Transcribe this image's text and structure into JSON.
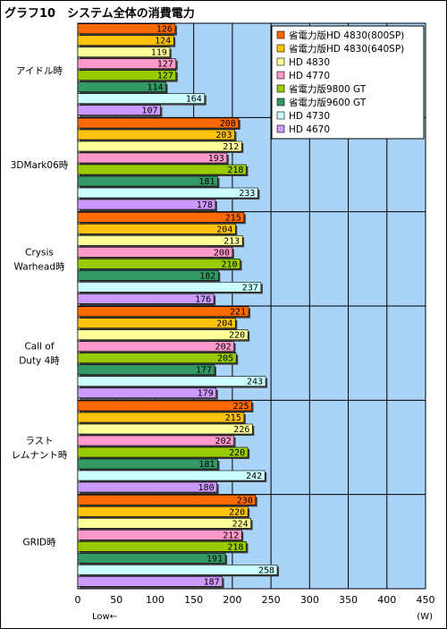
{
  "title": "グラフ10　システム全体の消費電力",
  "colors": {
    "plot_bg": "#a9d3f7",
    "grid": "#000000",
    "series": [
      "#ff6a00",
      "#ffc20a",
      "#ffff99",
      "#ff99cc",
      "#99cc00",
      "#339966",
      "#ccffff",
      "#cc99ff"
    ]
  },
  "chart_data": {
    "type": "bar",
    "orientation": "horizontal",
    "title": "グラフ10　システム全体の消費電力",
    "xlabel": "Low←",
    "unit": "(W)",
    "xlim": [
      0,
      450
    ],
    "x_ticks": [
      0,
      50,
      100,
      150,
      200,
      250,
      300,
      350,
      400,
      450
    ],
    "grid": true,
    "legend_position": "top-right",
    "categories": [
      "アイドル時",
      "3DMark06時",
      "Crysis\nWarhead時",
      "Call of\nDuty 4時",
      "ラスト\nレムナント時",
      "GRID時"
    ],
    "series": [
      {
        "name": "省電力版HD 4830(800SP)",
        "values": [
          126,
          208,
          215,
          221,
          225,
          230
        ]
      },
      {
        "name": "省電力版HD 4830(640SP)",
        "values": [
          124,
          203,
          204,
          204,
          215,
          220
        ]
      },
      {
        "name": "HD 4830",
        "values": [
          119,
          212,
          213,
          220,
          226,
          224
        ]
      },
      {
        "name": "HD 4770",
        "values": [
          127,
          193,
          200,
          202,
          202,
          212
        ]
      },
      {
        "name": "省電力版9800 GT",
        "values": [
          127,
          218,
          210,
          205,
          220,
          218
        ]
      },
      {
        "name": "省電力版9600 GT",
        "values": [
          114,
          181,
          182,
          177,
          181,
          191
        ]
      },
      {
        "name": "HD 4730",
        "values": [
          164,
          233,
          237,
          243,
          242,
          258
        ]
      },
      {
        "name": "HD 4670",
        "values": [
          107,
          178,
          176,
          179,
          180,
          187
        ]
      }
    ]
  }
}
